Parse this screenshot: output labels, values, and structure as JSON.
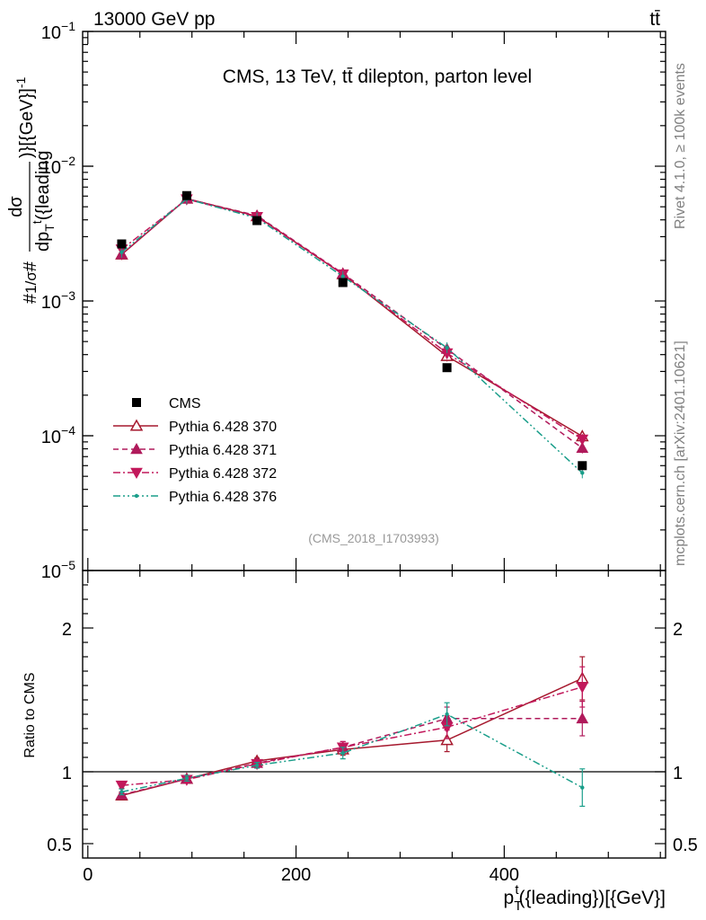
{
  "header": {
    "energy": "13000 GeV pp",
    "process": "tt̄",
    "plot_title": "CMS, 13 TeV, tt̄ dilepton, parton level",
    "analysis_id": "(CMS_2018_I1703993)"
  },
  "side_text": {
    "rivet": "Rivet 4.1.0, ≥ 100k events",
    "mcplots": "mcplots.cern.ch [arXiv:2401.10621]"
  },
  "axes": {
    "main_ylabel_prefix": "#",
    "main_ylabel_1_over_sigma": "1/σ",
    "main_ylabel_dsigma": "dσ",
    "main_ylabel_denom": "dp",
    "main_ylabel_denom_sub": "T",
    "main_ylabel_denom_sup": "t",
    "main_ylabel_denom_rest": "({leading",
    "main_ylabel_suffix": ")}[{GeV}]",
    "main_ylabel_suffix_exp": "-1",
    "ratio_ylabel": "Ratio to CMS",
    "xlabel_main": "p",
    "xlabel_sub": "T",
    "xlabel_sup": "t",
    "xlabel_rest": "({leading})[{GeV}]"
  },
  "chart_data": {
    "type": "line",
    "x_label": "p_T^t({leading})[{GeV}]",
    "y_label": "1/σ dσ/dp_T^t({leading}) [GeV^-1]",
    "xlim": [
      -5,
      555
    ],
    "ylim_main": [
      1e-05,
      0.1
    ],
    "y_scale_main": "log",
    "ylim_ratio": [
      0.4,
      2.4
    ],
    "x_ticks": [
      0,
      200,
      400
    ],
    "main_y_ticks": [
      {
        "value": 0.1,
        "mantissa": "10",
        "exp": "−1"
      },
      {
        "value": 0.01,
        "mantissa": "10",
        "exp": "−2"
      },
      {
        "value": 0.001,
        "mantissa": "10",
        "exp": "−3"
      },
      {
        "value": 0.0001,
        "mantissa": "10",
        "exp": "−4"
      },
      {
        "value": 1e-05,
        "mantissa": "10",
        "exp": "−5"
      }
    ],
    "ratio_y_ticks": [
      {
        "value": 2,
        "label": "2"
      },
      {
        "value": 1,
        "label": "1"
      },
      {
        "value": 0.5,
        "label": "0.5"
      }
    ],
    "x": [
      32.5,
      95,
      162.5,
      245,
      345,
      475
    ],
    "data": {
      "name": "CMS",
      "values": [
        0.00265,
        0.00605,
        0.00395,
        0.00137,
        0.00032,
        6e-05
      ],
      "color": "#000000"
    },
    "series": [
      {
        "name": "Pythia 6.428 370",
        "color": "#a6192e",
        "marker": "open-triangle-up",
        "dash": "",
        "values": [
          0.00221,
          0.00575,
          0.00425,
          0.00158,
          0.00039,
          9.9e-05
        ],
        "ratio": [
          0.835,
          0.95,
          1.075,
          1.155,
          1.22,
          1.65
        ],
        "ratio_err": [
          0.02,
          0.02,
          0.02,
          0.04,
          0.08,
          0.15
        ]
      },
      {
        "name": "Pythia 6.428 371",
        "color": "#b01a5b",
        "marker": "filled-triangle-up",
        "dash": "6,4",
        "values": [
          0.00222,
          0.00573,
          0.0043,
          0.0016,
          0.00044,
          8.1e-05
        ],
        "ratio": [
          0.84,
          0.95,
          1.06,
          1.17,
          1.37,
          1.37
        ],
        "ratio_err": [
          0.02,
          0.02,
          0.02,
          0.04,
          0.08,
          0.12
        ]
      },
      {
        "name": "Pythia 6.428 372",
        "color": "#c2185b",
        "marker": "filled-triangle-down",
        "dash": "8,3,2,3",
        "values": [
          0.00242,
          0.00569,
          0.00421,
          0.00158,
          0.00041,
          9.4e-05
        ],
        "ratio": [
          0.905,
          0.945,
          1.055,
          1.17,
          1.31,
          1.59
        ],
        "ratio_err": [
          0.02,
          0.02,
          0.02,
          0.04,
          0.08,
          0.14
        ]
      },
      {
        "name": "Pythia 6.428 376",
        "color": "#1a9e8a",
        "marker": "dot",
        "dash": "8,3,2,3,2,3",
        "values": [
          0.0023,
          0.00572,
          0.00412,
          0.00152,
          0.00045,
          5.3e-05
        ],
        "ratio": [
          0.86,
          0.955,
          1.045,
          1.13,
          1.4,
          0.89
        ],
        "ratio_err": [
          0.02,
          0.02,
          0.02,
          0.04,
          0.08,
          0.13
        ]
      }
    ]
  }
}
